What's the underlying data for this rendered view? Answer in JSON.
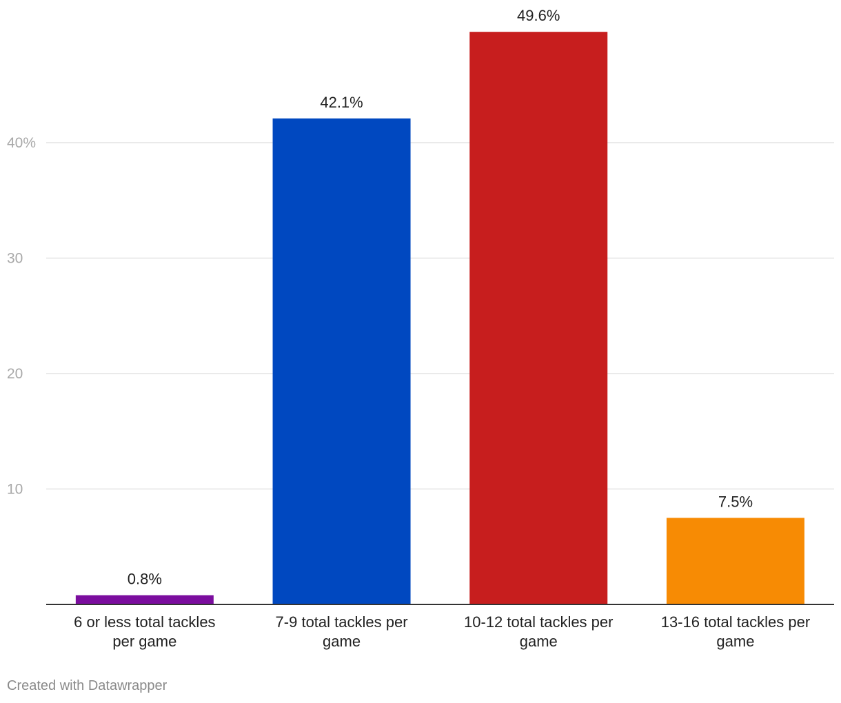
{
  "chart_data": {
    "type": "bar",
    "title": "",
    "xlabel": "",
    "ylabel": "",
    "categories": [
      [
        "6 or less total tackles",
        "per game"
      ],
      [
        "7-9 total tackles per",
        "game"
      ],
      [
        "10-12 total tackles per",
        "game"
      ],
      [
        "13-16 total tackles per",
        "game"
      ]
    ],
    "values": [
      0.8,
      42.1,
      49.6,
      7.5
    ],
    "value_labels": [
      "0.8%",
      "42.1%",
      "49.6%",
      "7.5%"
    ],
    "colors": [
      "#7b0d9e",
      "#0048c0",
      "#c71e1e",
      "#f78b04"
    ],
    "ylim": [
      0,
      50
    ],
    "yticks": [
      {
        "value": 10,
        "label": "10"
      },
      {
        "value": 20,
        "label": "20"
      },
      {
        "value": 30,
        "label": "30"
      },
      {
        "value": 40,
        "label": "40%"
      }
    ],
    "grid": true,
    "legend": "none"
  },
  "footer": {
    "credit": "Created with Datawrapper"
  }
}
